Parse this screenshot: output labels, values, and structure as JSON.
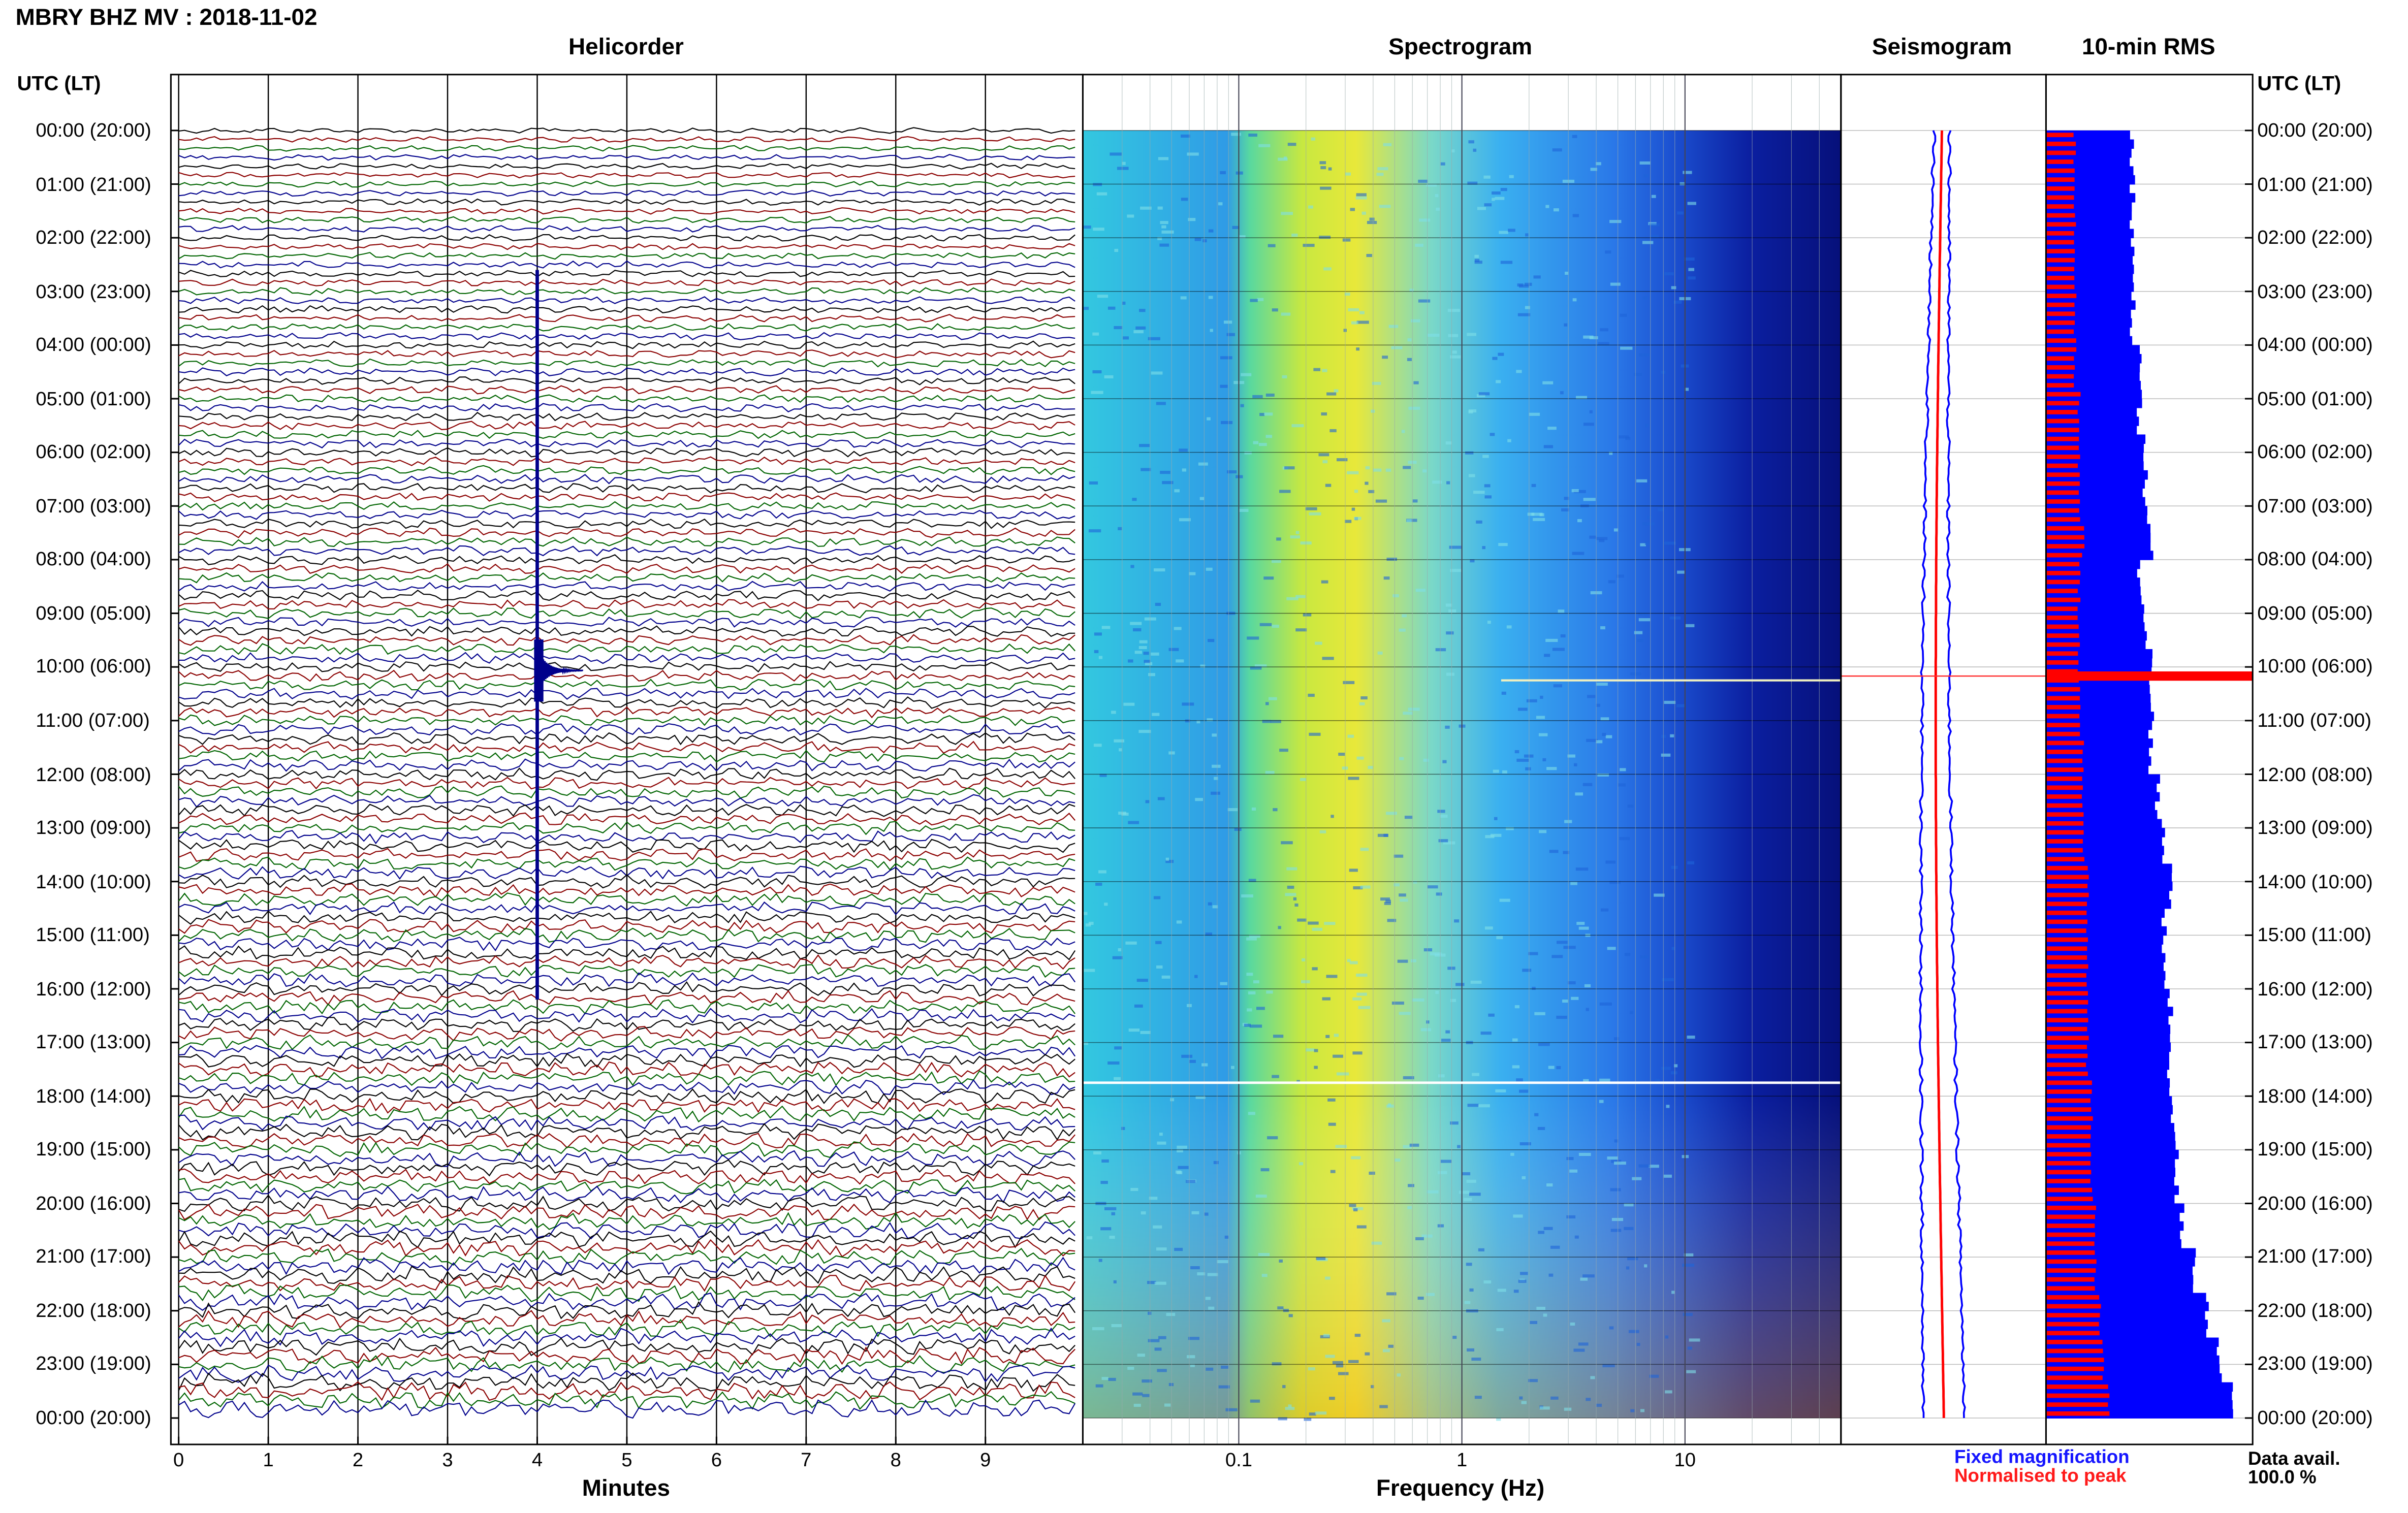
{
  "figure_title": "MBRY BHZ MV : 2018-11-02",
  "panels": {
    "helicorder": "Helicorder",
    "spectrogram": "Spectrogram",
    "seismogram": "Seismogram",
    "rms": "10-min RMS"
  },
  "time_axis_label": "UTC (LT)",
  "time_labels": [
    "00:00 (20:00)",
    "01:00 (21:00)",
    "02:00 (22:00)",
    "03:00 (23:00)",
    "04:00 (00:00)",
    "05:00 (01:00)",
    "06:00 (02:00)",
    "07:00 (03:00)",
    "08:00 (04:00)",
    "09:00 (05:00)",
    "10:00 (06:00)",
    "11:00 (07:00)",
    "12:00 (08:00)",
    "13:00 (09:00)",
    "14:00 (10:00)",
    "15:00 (11:00)",
    "16:00 (12:00)",
    "17:00 (13:00)",
    "18:00 (14:00)",
    "19:00 (15:00)",
    "20:00 (16:00)",
    "21:00 (17:00)",
    "22:00 (18:00)",
    "23:00 (19:00)",
    "00:00 (20:00)"
  ],
  "legend": {
    "fixed": "Fixed magnification",
    "normalised": "Normalised to peak"
  },
  "data_availability": {
    "label": "Data avail.",
    "value": "100.0 %"
  },
  "colors": {
    "trace_cycle": [
      "#000000",
      "#8b0000",
      "#006400",
      "#00008b"
    ],
    "fixed": "#0000ff",
    "normalised": "#ff0000"
  },
  "chart_data": [
    {
      "type": "line",
      "title": "Helicorder",
      "xlabel": "Minutes",
      "xlim": [
        0,
        10
      ],
      "x_ticks": [
        "0",
        "1",
        "2",
        "3",
        "4",
        "5",
        "6",
        "7",
        "8",
        "9"
      ],
      "lines_per_hour": 6,
      "hours": 24,
      "event": {
        "hour": 10,
        "minute": 4.0,
        "label_time": "10:04"
      }
    },
    {
      "type": "heatmap",
      "title": "Spectrogram",
      "xlabel": "Frequency (Hz)",
      "x_scale": "log",
      "xlim": [
        0.02,
        50
      ],
      "x_ticks": [
        "0.1",
        "1",
        "10"
      ],
      "peak_band_hz": [
        0.2,
        0.5
      ]
    },
    {
      "type": "line",
      "title": "Seismogram",
      "series": [
        "fixed",
        "normalised"
      ]
    },
    {
      "type": "bar",
      "title": "10-min RMS",
      "orientation": "horizontal",
      "bins": 144,
      "peak_bin_time": "10:10",
      "series": [
        {
          "name": "fixed",
          "relative_level": [
            0.14,
            0.14,
            0.14,
            0.14,
            0.14,
            0.15,
            0.15,
            0.16,
            0.16,
            0.17,
            0.15,
            0.16,
            0.17,
            0.17,
            0.17,
            0.18,
            0.19,
            0.2,
            0.19,
            0.19,
            0.2,
            0.2,
            0.2,
            0.21,
            0.21,
            0.22,
            0.24,
            0.26,
            0.28,
            0.3
          ]
        },
        {
          "name": "normalised",
          "relative_level": [
            0.07,
            0.07,
            0.07,
            0.07,
            0.07,
            0.07,
            0.08,
            0.08,
            0.08,
            0.09,
            0.08,
            0.08,
            0.08,
            0.08,
            0.09,
            0.09,
            0.09,
            0.1,
            0.1,
            0.1,
            0.1,
            0.1,
            0.11,
            0.11,
            0.11,
            0.12,
            0.12,
            0.13,
            0.14,
            0.15
          ]
        }
      ]
    }
  ]
}
